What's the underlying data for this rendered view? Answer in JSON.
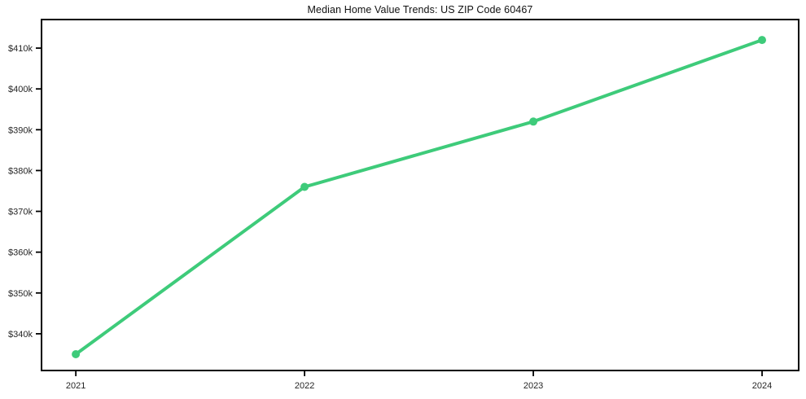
{
  "chart_data": {
    "type": "line",
    "title": "Median Home Value Trends: US ZIP Code 60467",
    "categories": [
      "2021",
      "2022",
      "2023",
      "2024"
    ],
    "x": [
      2021,
      2022,
      2023,
      2024
    ],
    "series": [
      {
        "name": "Median Home Value",
        "values": [
          335000,
          376000,
          392000,
          412000
        ]
      }
    ],
    "y_ticks": [
      {
        "value": 340000,
        "label": "$340k"
      },
      {
        "value": 350000,
        "label": "$350k"
      },
      {
        "value": 360000,
        "label": "$360k"
      },
      {
        "value": 370000,
        "label": "$370k"
      },
      {
        "value": 380000,
        "label": "$380k"
      },
      {
        "value": 390000,
        "label": "$390k"
      },
      {
        "value": 400000,
        "label": "$400k"
      },
      {
        "value": 410000,
        "label": "$410k"
      }
    ],
    "xlabel": "",
    "ylabel": "",
    "xlim": [
      2020.85,
      2024.16
    ],
    "ylim": [
      331000,
      417000
    ],
    "grid": false,
    "legend_position": "none",
    "colors": {
      "line": "#3ecb7a",
      "marker": "#3ecb7a",
      "frame": "#000000",
      "tick_text": "#262626",
      "title_text": "#111111",
      "background": "#ffffff"
    },
    "line_width": 4,
    "marker_radius": 5
  }
}
